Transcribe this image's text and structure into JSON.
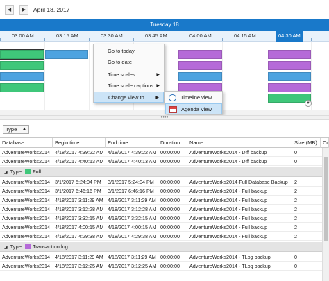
{
  "nav": {
    "prev": "◀",
    "next": "▶",
    "date": "April 18, 2017"
  },
  "scheduler": {
    "day": "Tuesday 18",
    "times": [
      "03:00 AM",
      "03:15 AM",
      "03:30 AM",
      "03:45 AM",
      "04:00 AM",
      "04:15 AM",
      "04:30 AM"
    ],
    "active_time": "04:30 AM",
    "colors": {
      "full": "#3fc77a",
      "diff": "#4da3e0",
      "tlog": "#b56ad8",
      "accent": "#1979ca"
    }
  },
  "splitter": "••••",
  "group_panel": {
    "chip": "Type",
    "chip_arrow": "▲"
  },
  "context_menu": {
    "items": [
      "Go to today",
      "Go to date",
      "Time scales",
      "Time scale captions",
      "Change view to"
    ],
    "submenu": [
      "Timeline view",
      "Agenda View"
    ]
  },
  "grid": {
    "columns": [
      "Database",
      "Begin time",
      "End time",
      "Duration",
      "Name",
      "Size (MB)",
      "Co"
    ],
    "rows_top": [
      [
        "AdventureWorks2014",
        "4/18/2017 4:39:22 AM",
        "4/18/2017 4:39:22 AM",
        "00:00:00",
        "AdventureWorks2014 - Diff backup",
        "0"
      ],
      [
        "AdventureWorks2014",
        "4/18/2017 4:40:13 AM",
        "4/18/2017 4:40:13 AM",
        "00:00:00",
        "AdventureWorks2014 - Diff backup",
        "0"
      ]
    ],
    "group_full": {
      "label": "Type:",
      "value": "Full",
      "toggle": "◢"
    },
    "rows_full": [
      [
        "AdventureWorks2014",
        "3/1/2017 5:24:04 PM",
        "3/1/2017 5:24:04 PM",
        "00:00:00",
        "AdventureWorks2014-Full Database Backup",
        "2"
      ],
      [
        "AdventureWorks2014",
        "3/1/2017 6:46:16 PM",
        "3/1/2017 6:46:16 PM",
        "00:00:00",
        "AdventureWorks2014 - Full backup",
        "2"
      ],
      [
        "AdventureWorks2014",
        "4/18/2017 3:11:29 AM",
        "4/18/2017 3:11:29 AM",
        "00:00:00",
        "AdventureWorks2014 - Full backup",
        "2"
      ],
      [
        "AdventureWorks2014",
        "4/18/2017 3:12:28 AM",
        "4/18/2017 3:12:28 AM",
        "00:00:00",
        "AdventureWorks2014 - Full backup",
        "2"
      ],
      [
        "AdventureWorks2014",
        "4/18/2017 3:32:15 AM",
        "4/18/2017 3:32:15 AM",
        "00:00:00",
        "AdventureWorks2014 - Full backup",
        "2"
      ],
      [
        "AdventureWorks2014",
        "4/18/2017 4:00:15 AM",
        "4/18/2017 4:00:15 AM",
        "00:00:00",
        "AdventureWorks2014 - Full backup",
        "2"
      ],
      [
        "AdventureWorks2014",
        "4/18/2017 4:29:38 AM",
        "4/18/2017 4:29:38 AM",
        "00:00:00",
        "AdventureWorks2014 - Full backup",
        "2"
      ]
    ],
    "group_tlog": {
      "label": "Type:",
      "value": "Transaction log",
      "toggle": "◢"
    },
    "rows_tlog": [
      [
        "AdventureWorks2014",
        "4/18/2017 3:11:29 AM",
        "4/18/2017 3:11:29 AM",
        "00:00:00",
        "AdventureWorks2014 - TLog backup",
        "0"
      ],
      [
        "AdventureWorks2014",
        "4/18/2017 3:12:25 AM",
        "4/18/2017 3:12:25 AM",
        "00:00:00",
        "AdventureWorks2014 - TLog backup",
        "0"
      ]
    ]
  }
}
